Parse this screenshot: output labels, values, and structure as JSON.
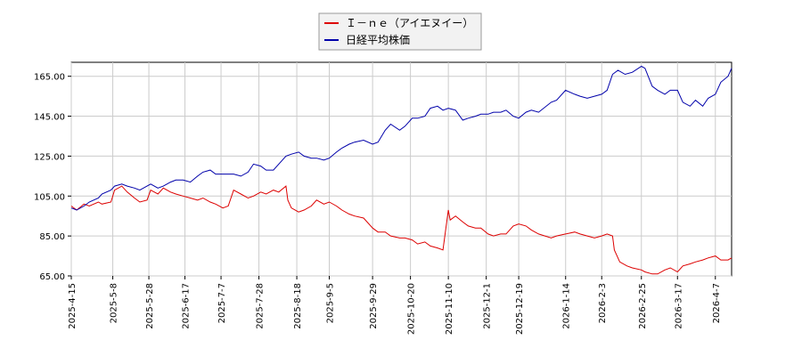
{
  "chart_data": {
    "type": "line",
    "title": "",
    "xlabel": "",
    "ylabel": "",
    "ylim": [
      65,
      172
    ],
    "grid": true,
    "legend_position": "top-center",
    "yticks": [
      "65.00",
      "85.00",
      "105.00",
      "125.00",
      "145.00",
      "165.00"
    ],
    "xticks": [
      "2025-4-15",
      "2025-5-8",
      "2025-5-28",
      "2025-6-17",
      "2025-7-7",
      "2025-7-28",
      "2025-8-18",
      "2025-9-5",
      "2025-9-29",
      "2025-10-20",
      "2025-11-10",
      "2025-12-1",
      "2025-12-19",
      "2026-1-14",
      "2026-2-3",
      "2026-2-25",
      "2026-3-17",
      "2026-4-7"
    ],
    "x_range": [
      "2025-04-15",
      "2026-04-16"
    ],
    "series": [
      {
        "name": "Ｉ－ｎｅ（アイエヌイー）",
        "color": "#dd0000",
        "points": [
          [
            "2025-04-15",
            100
          ],
          [
            "2025-04-18",
            98
          ],
          [
            "2025-04-22",
            101
          ],
          [
            "2025-04-25",
            100
          ],
          [
            "2025-04-30",
            102
          ],
          [
            "2025-05-02",
            101
          ],
          [
            "2025-05-07",
            102
          ],
          [
            "2025-05-09",
            108
          ],
          [
            "2025-05-13",
            110
          ],
          [
            "2025-05-16",
            107
          ],
          [
            "2025-05-20",
            104
          ],
          [
            "2025-05-23",
            102
          ],
          [
            "2025-05-27",
            103
          ],
          [
            "2025-05-29",
            108
          ],
          [
            "2025-06-02",
            106
          ],
          [
            "2025-06-05",
            109
          ],
          [
            "2025-06-09",
            107
          ],
          [
            "2025-06-12",
            106
          ],
          [
            "2025-06-16",
            105
          ],
          [
            "2025-06-20",
            104
          ],
          [
            "2025-06-24",
            103
          ],
          [
            "2025-06-27",
            104
          ],
          [
            "2025-07-01",
            102
          ],
          [
            "2025-07-04",
            101
          ],
          [
            "2025-07-08",
            99
          ],
          [
            "2025-07-11",
            100
          ],
          [
            "2025-07-14",
            108
          ],
          [
            "2025-07-18",
            106
          ],
          [
            "2025-07-22",
            104
          ],
          [
            "2025-07-25",
            105
          ],
          [
            "2025-07-29",
            107
          ],
          [
            "2025-08-01",
            106
          ],
          [
            "2025-08-05",
            108
          ],
          [
            "2025-08-08",
            107
          ],
          [
            "2025-08-12",
            110
          ],
          [
            "2025-08-13",
            103
          ],
          [
            "2025-08-15",
            99
          ],
          [
            "2025-08-19",
            97
          ],
          [
            "2025-08-22",
            98
          ],
          [
            "2025-08-26",
            100
          ],
          [
            "2025-08-29",
            103
          ],
          [
            "2025-09-02",
            101
          ],
          [
            "2025-09-05",
            102
          ],
          [
            "2025-09-09",
            100
          ],
          [
            "2025-09-12",
            98
          ],
          [
            "2025-09-16",
            96
          ],
          [
            "2025-09-19",
            95
          ],
          [
            "2025-09-24",
            94
          ],
          [
            "2025-09-29",
            89
          ],
          [
            "2025-10-02",
            87
          ],
          [
            "2025-10-06",
            87
          ],
          [
            "2025-10-09",
            85
          ],
          [
            "2025-10-14",
            84
          ],
          [
            "2025-10-17",
            84
          ],
          [
            "2025-10-21",
            83
          ],
          [
            "2025-10-24",
            81
          ],
          [
            "2025-10-28",
            82
          ],
          [
            "2025-10-31",
            80
          ],
          [
            "2025-11-04",
            79
          ],
          [
            "2025-11-07",
            78
          ],
          [
            "2025-11-10",
            98
          ],
          [
            "2025-11-11",
            93
          ],
          [
            "2025-11-14",
            95
          ],
          [
            "2025-11-18",
            92
          ],
          [
            "2025-11-21",
            90
          ],
          [
            "2025-11-25",
            89
          ],
          [
            "2025-11-28",
            89
          ],
          [
            "2025-12-02",
            86
          ],
          [
            "2025-12-05",
            85
          ],
          [
            "2025-12-09",
            86
          ],
          [
            "2025-12-12",
            86
          ],
          [
            "2025-12-16",
            90
          ],
          [
            "2025-12-19",
            91
          ],
          [
            "2025-12-23",
            90
          ],
          [
            "2025-12-26",
            88
          ],
          [
            "2025-12-30",
            86
          ],
          [
            "2026-01-06",
            84
          ],
          [
            "2026-01-09",
            85
          ],
          [
            "2026-01-14",
            86
          ],
          [
            "2026-01-19",
            87
          ],
          [
            "2026-01-22",
            86
          ],
          [
            "2026-01-26",
            85
          ],
          [
            "2026-01-30",
            84
          ],
          [
            "2026-02-03",
            85
          ],
          [
            "2026-02-06",
            86
          ],
          [
            "2026-02-09",
            85
          ],
          [
            "2026-02-10",
            78
          ],
          [
            "2026-02-13",
            72
          ],
          [
            "2026-02-17",
            70
          ],
          [
            "2026-02-20",
            69
          ],
          [
            "2026-02-25",
            68
          ],
          [
            "2026-02-27",
            67
          ],
          [
            "2026-03-03",
            66
          ],
          [
            "2026-03-06",
            66
          ],
          [
            "2026-03-10",
            68
          ],
          [
            "2026-03-13",
            69
          ],
          [
            "2026-03-17",
            67
          ],
          [
            "2026-03-20",
            70
          ],
          [
            "2026-03-24",
            71
          ],
          [
            "2026-03-27",
            72
          ],
          [
            "2026-03-31",
            73
          ],
          [
            "2026-04-03",
            74
          ],
          [
            "2026-04-07",
            75
          ],
          [
            "2026-04-10",
            73
          ],
          [
            "2026-04-14",
            73
          ],
          [
            "2026-04-16",
            74
          ]
        ]
      },
      {
        "name": "日経平均株価",
        "color": "#0000aa",
        "points": [
          [
            "2025-04-15",
            99
          ],
          [
            "2025-04-18",
            98
          ],
          [
            "2025-04-22",
            100
          ],
          [
            "2025-04-25",
            102
          ],
          [
            "2025-04-30",
            104
          ],
          [
            "2025-05-02",
            106
          ],
          [
            "2025-05-07",
            108
          ],
          [
            "2025-05-09",
            110
          ],
          [
            "2025-05-13",
            111
          ],
          [
            "2025-05-16",
            110
          ],
          [
            "2025-05-20",
            109
          ],
          [
            "2025-05-23",
            108
          ],
          [
            "2025-05-27",
            110
          ],
          [
            "2025-05-29",
            111
          ],
          [
            "2025-06-02",
            109
          ],
          [
            "2025-06-05",
            110
          ],
          [
            "2025-06-09",
            112
          ],
          [
            "2025-06-12",
            113
          ],
          [
            "2025-06-16",
            113
          ],
          [
            "2025-06-20",
            112
          ],
          [
            "2025-06-24",
            115
          ],
          [
            "2025-06-27",
            117
          ],
          [
            "2025-07-01",
            118
          ],
          [
            "2025-07-04",
            116
          ],
          [
            "2025-07-08",
            116
          ],
          [
            "2025-07-11",
            116
          ],
          [
            "2025-07-14",
            116
          ],
          [
            "2025-07-18",
            115
          ],
          [
            "2025-07-22",
            117
          ],
          [
            "2025-07-25",
            121
          ],
          [
            "2025-07-29",
            120
          ],
          [
            "2025-08-01",
            118
          ],
          [
            "2025-08-05",
            118
          ],
          [
            "2025-08-08",
            121
          ],
          [
            "2025-08-12",
            125
          ],
          [
            "2025-08-15",
            126
          ],
          [
            "2025-08-19",
            127
          ],
          [
            "2025-08-22",
            125
          ],
          [
            "2025-08-26",
            124
          ],
          [
            "2025-08-29",
            124
          ],
          [
            "2025-09-02",
            123
          ],
          [
            "2025-09-05",
            124
          ],
          [
            "2025-09-09",
            127
          ],
          [
            "2025-09-12",
            129
          ],
          [
            "2025-09-16",
            131
          ],
          [
            "2025-09-19",
            132
          ],
          [
            "2025-09-24",
            133
          ],
          [
            "2025-09-29",
            131
          ],
          [
            "2025-10-02",
            132
          ],
          [
            "2025-10-06",
            138
          ],
          [
            "2025-10-09",
            141
          ],
          [
            "2025-10-14",
            138
          ],
          [
            "2025-10-17",
            140
          ],
          [
            "2025-10-21",
            144
          ],
          [
            "2025-10-24",
            144
          ],
          [
            "2025-10-28",
            145
          ],
          [
            "2025-10-31",
            149
          ],
          [
            "2025-11-04",
            150
          ],
          [
            "2025-11-07",
            148
          ],
          [
            "2025-11-10",
            149
          ],
          [
            "2025-11-14",
            148
          ],
          [
            "2025-11-18",
            143
          ],
          [
            "2025-11-21",
            144
          ],
          [
            "2025-11-25",
            145
          ],
          [
            "2025-11-28",
            146
          ],
          [
            "2025-12-02",
            146
          ],
          [
            "2025-12-05",
            147
          ],
          [
            "2025-12-09",
            147
          ],
          [
            "2025-12-12",
            148
          ],
          [
            "2025-12-16",
            145
          ],
          [
            "2025-12-19",
            144
          ],
          [
            "2025-12-23",
            147
          ],
          [
            "2025-12-26",
            148
          ],
          [
            "2025-12-30",
            147
          ],
          [
            "2026-01-06",
            152
          ],
          [
            "2026-01-09",
            153
          ],
          [
            "2026-01-14",
            158
          ],
          [
            "2026-01-19",
            156
          ],
          [
            "2026-01-22",
            155
          ],
          [
            "2026-01-26",
            154
          ],
          [
            "2026-01-30",
            155
          ],
          [
            "2026-02-03",
            156
          ],
          [
            "2026-02-06",
            158
          ],
          [
            "2026-02-09",
            166
          ],
          [
            "2026-02-12",
            168
          ],
          [
            "2026-02-16",
            166
          ],
          [
            "2026-02-20",
            167
          ],
          [
            "2026-02-25",
            170
          ],
          [
            "2026-02-27",
            169
          ],
          [
            "2026-03-03",
            160
          ],
          [
            "2026-03-06",
            158
          ],
          [
            "2026-03-10",
            156
          ],
          [
            "2026-03-13",
            158
          ],
          [
            "2026-03-17",
            158
          ],
          [
            "2026-03-20",
            152
          ],
          [
            "2026-03-24",
            150
          ],
          [
            "2026-03-27",
            153
          ],
          [
            "2026-03-31",
            150
          ],
          [
            "2026-04-03",
            154
          ],
          [
            "2026-04-07",
            156
          ],
          [
            "2026-04-10",
            162
          ],
          [
            "2026-04-14",
            165
          ],
          [
            "2026-04-16",
            169
          ]
        ]
      }
    ]
  }
}
